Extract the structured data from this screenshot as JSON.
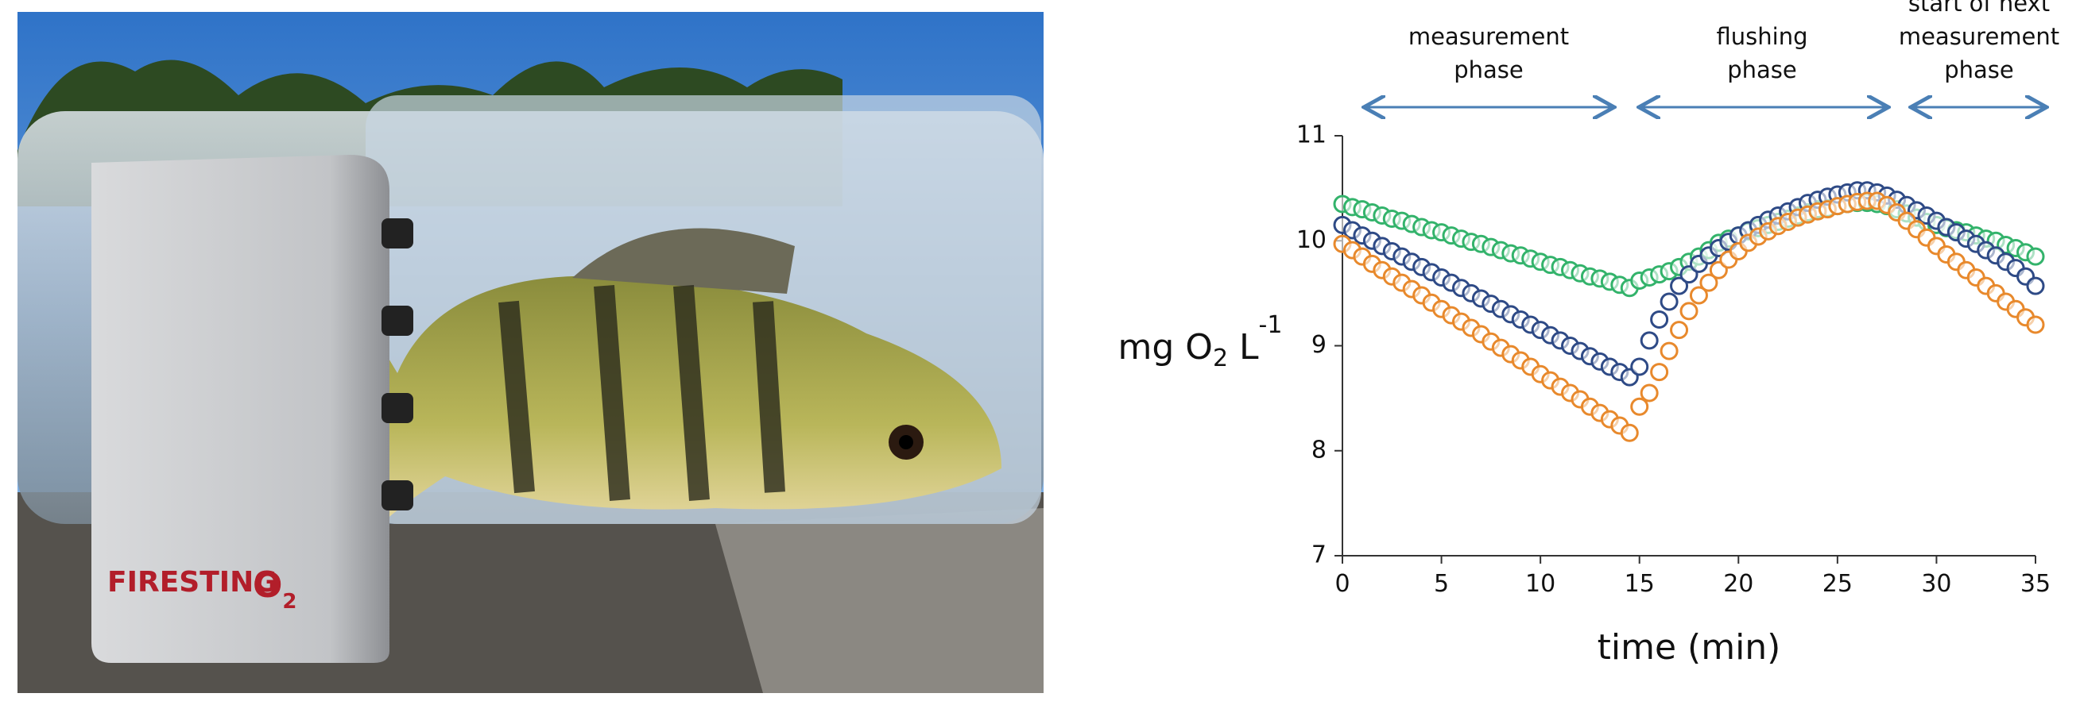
{
  "photo": {
    "device_brand": "FIRESTING",
    "device_gas": "O",
    "device_gas_sub": "2"
  },
  "chart_data": {
    "type": "scatter",
    "annotations": [
      {
        "lines": [
          "measurement",
          "phase"
        ]
      },
      {
        "lines": [
          "flushing",
          "phase"
        ]
      },
      {
        "lines": [
          "start of next",
          "measurement",
          "phase"
        ]
      }
    ],
    "ylabel_parts": [
      {
        "text": "mg O"
      },
      {
        "text": "2",
        "shift": "sub"
      },
      {
        "text": " L"
      },
      {
        "text": "-1",
        "shift": "super"
      }
    ],
    "xlabel": "time (min)",
    "xlim": [
      0,
      35
    ],
    "xticks": [
      0,
      5,
      10,
      15,
      20,
      25,
      30,
      35
    ],
    "ylim": [
      7,
      11
    ],
    "yticks": [
      7,
      8,
      9,
      10,
      11
    ],
    "x": [
      0,
      0.5,
      1,
      1.5,
      2,
      2.5,
      3,
      3.5,
      4,
      4.5,
      5,
      5.5,
      6,
      6.5,
      7,
      7.5,
      8,
      8.5,
      9,
      9.5,
      10,
      10.5,
      11,
      11.5,
      12,
      12.5,
      13,
      13.5,
      14,
      14.5,
      15,
      15.5,
      16,
      16.5,
      17,
      17.5,
      18,
      18.5,
      19,
      19.5,
      20,
      20.5,
      21,
      21.5,
      22,
      22.5,
      23,
      23.5,
      24,
      24.5,
      25,
      25.5,
      26,
      26.5,
      27,
      27.5,
      28,
      28.5,
      29,
      29.5,
      30,
      30.5,
      31,
      31.5,
      32,
      32.5,
      33,
      33.5,
      34,
      34.5,
      35
    ],
    "series": [
      {
        "color": "#33b36b",
        "values": [
          10.35,
          10.32,
          10.3,
          10.27,
          10.24,
          10.21,
          10.19,
          10.16,
          10.13,
          10.1,
          10.08,
          10.05,
          10.02,
          9.99,
          9.97,
          9.94,
          9.91,
          9.88,
          9.86,
          9.83,
          9.8,
          9.77,
          9.75,
          9.72,
          9.69,
          9.66,
          9.64,
          9.61,
          9.58,
          9.55,
          9.62,
          9.65,
          9.68,
          9.71,
          9.75,
          9.8,
          9.85,
          9.91,
          9.98,
          10.02,
          10.05,
          10.09,
          10.12,
          10.15,
          10.18,
          10.21,
          10.24,
          10.27,
          10.3,
          10.31,
          10.33,
          10.35,
          10.36,
          10.36,
          10.35,
          10.33,
          10.3,
          10.26,
          10.22,
          10.18,
          10.15,
          10.12,
          10.1,
          10.08,
          10.05,
          10.02,
          10.0,
          9.96,
          9.93,
          9.89,
          9.85
        ]
      },
      {
        "color": "#2e4a86",
        "values": [
          10.15,
          10.1,
          10.05,
          10.0,
          9.95,
          9.9,
          9.85,
          9.8,
          9.75,
          9.7,
          9.65,
          9.6,
          9.55,
          9.5,
          9.45,
          9.4,
          9.35,
          9.3,
          9.25,
          9.2,
          9.15,
          9.1,
          9.05,
          9.0,
          8.95,
          8.9,
          8.85,
          8.8,
          8.75,
          8.7,
          8.8,
          9.05,
          9.25,
          9.42,
          9.57,
          9.68,
          9.78,
          9.86,
          9.93,
          9.99,
          10.05,
          10.1,
          10.15,
          10.2,
          10.24,
          10.28,
          10.32,
          10.36,
          10.39,
          10.42,
          10.44,
          10.46,
          10.48,
          10.48,
          10.46,
          10.43,
          10.39,
          10.34,
          10.29,
          10.24,
          10.19,
          10.13,
          10.08,
          10.02,
          9.97,
          9.91,
          9.86,
          9.8,
          9.74,
          9.66,
          9.57
        ]
      },
      {
        "color": "#e8892c",
        "values": [
          9.97,
          9.91,
          9.85,
          9.78,
          9.72,
          9.66,
          9.6,
          9.54,
          9.48,
          9.41,
          9.35,
          9.29,
          9.23,
          9.17,
          9.11,
          9.04,
          8.98,
          8.92,
          8.86,
          8.8,
          8.73,
          8.67,
          8.61,
          8.55,
          8.49,
          8.42,
          8.36,
          8.3,
          8.24,
          8.17,
          8.42,
          8.55,
          8.75,
          8.95,
          9.15,
          9.33,
          9.48,
          9.6,
          9.72,
          9.82,
          9.9,
          9.98,
          10.04,
          10.09,
          10.14,
          10.18,
          10.22,
          10.25,
          10.28,
          10.3,
          10.33,
          10.35,
          10.37,
          10.38,
          10.38,
          10.34,
          10.27,
          10.19,
          10.11,
          10.03,
          9.95,
          9.87,
          9.8,
          9.72,
          9.65,
          9.57,
          9.5,
          9.42,
          9.35,
          9.27,
          9.2
        ]
      }
    ]
  }
}
